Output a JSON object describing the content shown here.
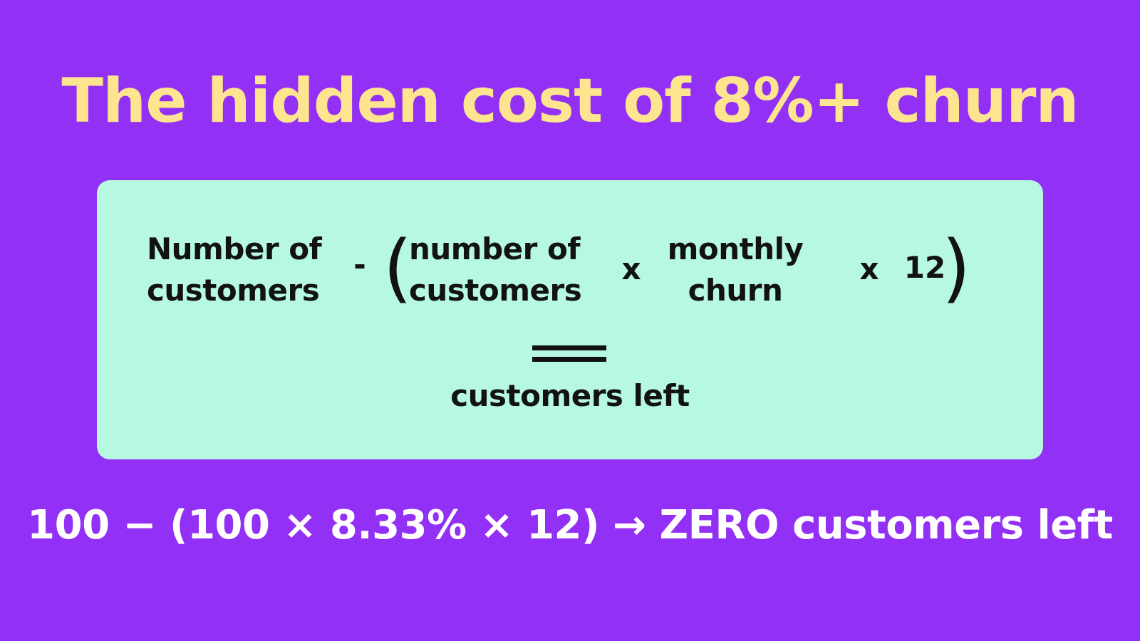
{
  "title": "The hidden cost of 8%+ churn",
  "formula": {
    "term1": {
      "line1": "Number of",
      "line2": "customers"
    },
    "minus": "-",
    "open_paren": "(",
    "term2": {
      "line1": "number of",
      "line2": "customers"
    },
    "times1": "x",
    "term3": {
      "line1": "monthly",
      "line2": "churn"
    },
    "times2": "x",
    "multiplier": "12",
    "close_paren": ")",
    "result": "customers left"
  },
  "example": "100 − (100 × 8.33% × 12) → ZERO customers left",
  "colors": {
    "background": "#9230f5",
    "title": "#fde58f",
    "card": "#b6f8e0",
    "text_dark": "#121212",
    "example_text": "#ffffff"
  }
}
